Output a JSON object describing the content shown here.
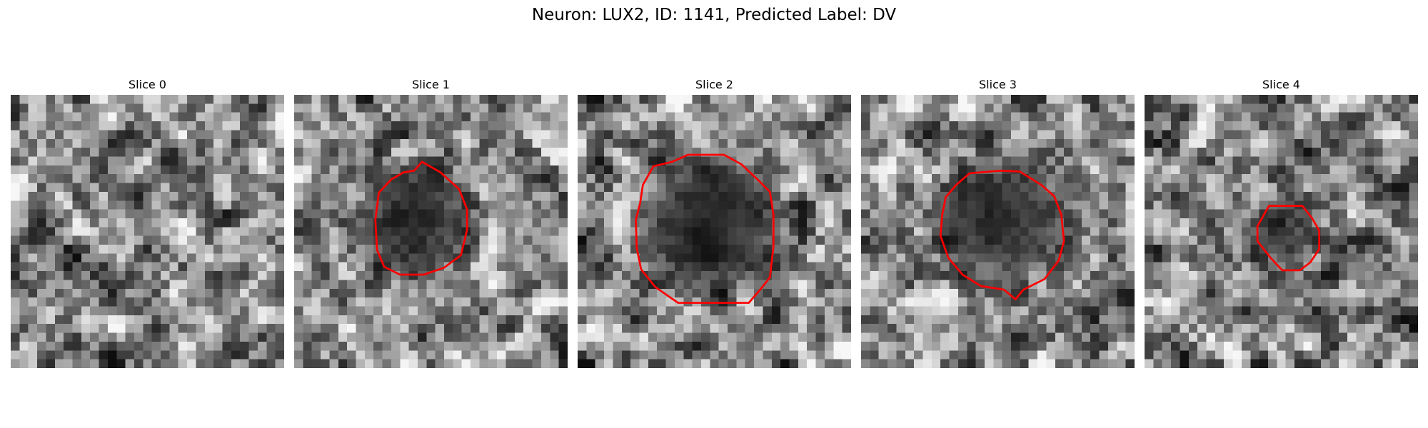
{
  "figure": {
    "title": "Neuron: LUX2, ID: 1141, Predicted Label: DV"
  },
  "contour_color": "#ff0000",
  "colormap": "gray",
  "grid_size": 31,
  "slices": [
    {
      "label": "Slice 0",
      "seed": 7,
      "blob": null,
      "contour": null
    },
    {
      "label": "Slice 1",
      "seed": 19,
      "blob": {
        "cx": 13.3,
        "cy": 13.8,
        "r": 6.3,
        "strength": 0.78
      },
      "contour": [
        [
          14.5,
          7.6
        ],
        [
          16.6,
          8.8
        ],
        [
          18.7,
          10.7
        ],
        [
          19.6,
          13.0
        ],
        [
          19.6,
          15.3
        ],
        [
          18.9,
          18.2
        ],
        [
          17.0,
          19.6
        ],
        [
          14.7,
          20.4
        ],
        [
          12.0,
          20.4
        ],
        [
          10.2,
          19.5
        ],
        [
          9.4,
          17.6
        ],
        [
          9.2,
          14.2
        ],
        [
          9.6,
          11.1
        ],
        [
          11.0,
          9.6
        ],
        [
          12.4,
          8.8
        ],
        [
          13.6,
          8.6
        ]
      ]
    },
    {
      "label": "Slice 2",
      "seed": 31,
      "blob": {
        "cx": 15.0,
        "cy": 14.5,
        "r": 8.0,
        "strength": 0.85
      },
      "contour": [
        [
          12.5,
          6.8
        ],
        [
          16.6,
          6.8
        ],
        [
          18.6,
          7.9
        ],
        [
          20.4,
          9.6
        ],
        [
          21.8,
          11.0
        ],
        [
          22.2,
          13.6
        ],
        [
          22.2,
          17.2
        ],
        [
          21.8,
          20.7
        ],
        [
          20.7,
          22.1
        ],
        [
          19.4,
          23.6
        ],
        [
          15.8,
          23.6
        ],
        [
          11.4,
          23.6
        ],
        [
          8.8,
          21.8
        ],
        [
          7.2,
          19.8
        ],
        [
          6.7,
          17.4
        ],
        [
          6.6,
          14.2
        ],
        [
          7.1,
          12.2
        ],
        [
          7.4,
          10.2
        ],
        [
          8.6,
          8.1
        ],
        [
          10.7,
          7.6
        ]
      ]
    },
    {
      "label": "Slice 3",
      "seed": 47,
      "blob": {
        "cx": 16.0,
        "cy": 14.5,
        "r": 7.0,
        "strength": 0.8
      },
      "contour": [
        [
          12.3,
          8.9
        ],
        [
          15.8,
          8.6
        ],
        [
          18.0,
          8.7
        ],
        [
          20.4,
          10.2
        ],
        [
          21.9,
          11.5
        ],
        [
          22.7,
          13.6
        ],
        [
          23.0,
          16.6
        ],
        [
          22.4,
          18.8
        ],
        [
          20.8,
          20.9
        ],
        [
          18.4,
          22.1
        ],
        [
          17.5,
          23.2
        ],
        [
          16.2,
          22.1
        ],
        [
          13.6,
          21.7
        ],
        [
          11.5,
          20.4
        ],
        [
          9.9,
          18.5
        ],
        [
          9.0,
          16.0
        ],
        [
          9.2,
          13.6
        ],
        [
          9.6,
          11.6
        ],
        [
          10.8,
          10.2
        ]
      ]
    },
    {
      "label": "Slice 4",
      "seed": 59,
      "blob": {
        "cx": 15.7,
        "cy": 16.0,
        "r": 4.6,
        "strength": 0.55
      },
      "contour": [
        [
          14.1,
          12.6
        ],
        [
          17.9,
          12.6
        ],
        [
          19.0,
          14.0
        ],
        [
          19.8,
          15.4
        ],
        [
          19.8,
          17.5
        ],
        [
          18.8,
          19.0
        ],
        [
          17.6,
          19.9
        ],
        [
          15.6,
          19.9
        ],
        [
          14.3,
          18.5
        ],
        [
          12.8,
          16.6
        ],
        [
          12.8,
          14.9
        ]
      ]
    }
  ]
}
